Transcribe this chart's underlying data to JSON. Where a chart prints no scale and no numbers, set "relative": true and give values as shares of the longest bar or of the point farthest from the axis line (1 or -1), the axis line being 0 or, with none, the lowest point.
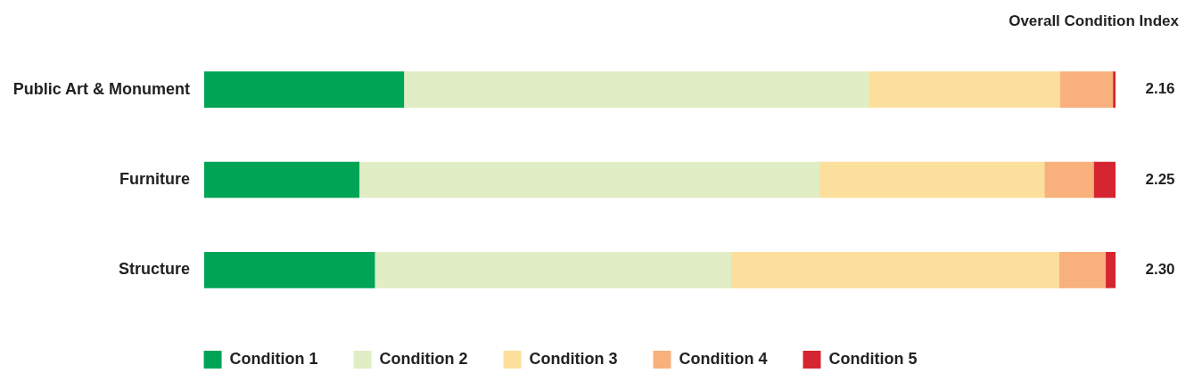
{
  "chart_data": {
    "type": "bar",
    "orientation": "horizontal",
    "stacked": true,
    "relative": true,
    "legend": "bottom",
    "categories": [
      "Public Art & Monument",
      "Furniture",
      "Structure"
    ],
    "series": [
      {
        "name": "Condition 1",
        "color": "#00a455",
        "values": [
          0.219,
          0.17,
          0.187
        ]
      },
      {
        "name": "Condition 2",
        "color": "#e1edc5",
        "values": [
          0.51,
          0.505,
          0.391
        ]
      },
      {
        "name": "Condition 3",
        "color": "#fddf9d",
        "values": [
          0.21,
          0.247,
          0.36
        ]
      },
      {
        "name": "Condition 4",
        "color": "#f8b07c",
        "values": [
          0.058,
          0.054,
          0.051
        ]
      },
      {
        "name": "Condition 5",
        "color": "#d52530",
        "values": [
          0.003,
          0.024,
          0.011
        ]
      }
    ],
    "annotations": [
      "Overall Condition Index",
      "2.16",
      "2.25",
      "2.30"
    ]
  }
}
